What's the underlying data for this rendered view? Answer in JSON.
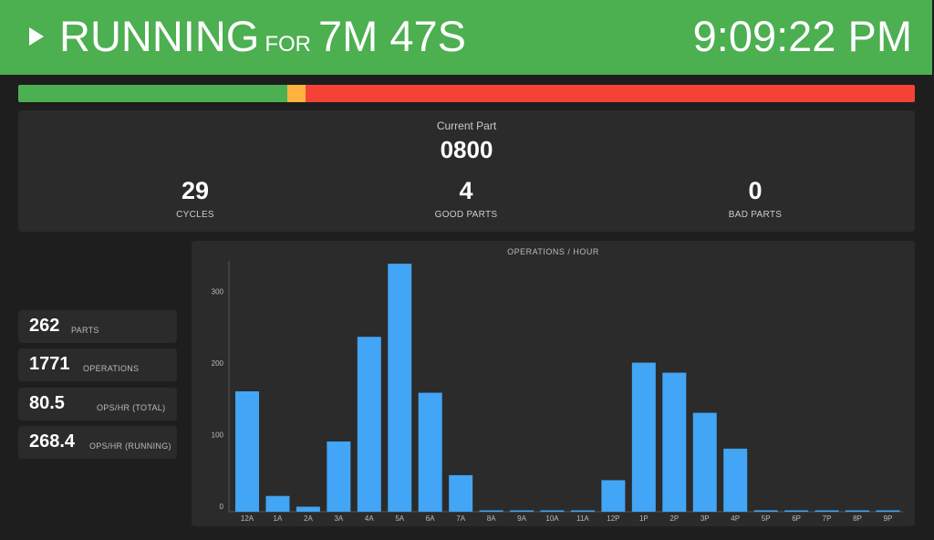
{
  "status": {
    "state": "RUNNING",
    "for_label": "FOR",
    "duration": "7M 47S",
    "clock": "9:09:22 PM"
  },
  "timeline": {
    "segments": [
      {
        "state": "running",
        "fraction": 0.3,
        "color": "#4caf50"
      },
      {
        "state": "warning",
        "fraction": 0.02,
        "color": "#ffb33c"
      },
      {
        "state": "down",
        "fraction": 0.68,
        "color": "#f44336"
      }
    ]
  },
  "current_part": {
    "label": "Current Part",
    "value": "0800",
    "stats": [
      {
        "value": "29",
        "label": "CYCLES"
      },
      {
        "value": "4",
        "label": "GOOD PARTS"
      },
      {
        "value": "0",
        "label": "BAD PARTS"
      }
    ]
  },
  "metrics": [
    {
      "value": "262",
      "label": "PARTS"
    },
    {
      "value": "1771",
      "label": "OPERATIONS"
    },
    {
      "value": "80.5",
      "label": "OPS/HR (TOTAL)"
    },
    {
      "value": "268.4",
      "label": "OPS/HR (RUNNING)"
    }
  ],
  "chart_data": {
    "type": "bar",
    "title": "OPERATIONS / HOUR",
    "categories": [
      "12A",
      "1A",
      "2A",
      "3A",
      "4A",
      "5A",
      "6A",
      "7A",
      "8A",
      "9A",
      "10A",
      "11A",
      "12P",
      "1P",
      "2P",
      "3P",
      "4P",
      "5P",
      "6P",
      "7P",
      "8P",
      "9P"
    ],
    "values": [
      168,
      22,
      7,
      98,
      244,
      346,
      166,
      51,
      1,
      1,
      1,
      1,
      44,
      208,
      194,
      138,
      88,
      2,
      1,
      1,
      1,
      1
    ],
    "yticks": [
      "0",
      "100",
      "200",
      "300"
    ],
    "ylim": [
      0,
      350
    ],
    "bar_color": "#42a5f5",
    "grid": false
  }
}
